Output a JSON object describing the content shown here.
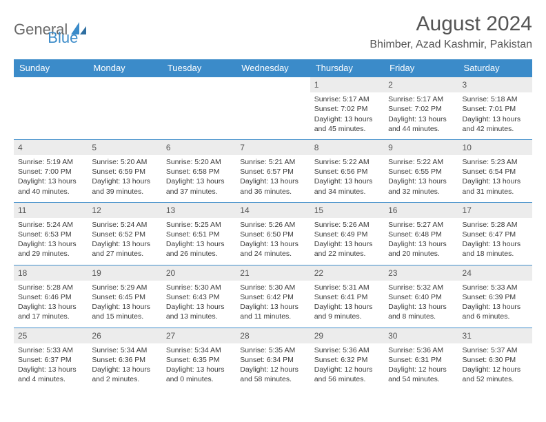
{
  "logo": {
    "part1": "General",
    "part2": "Blue"
  },
  "title": "August 2024",
  "location": "Bhimber, Azad Kashmir, Pakistan",
  "colors": {
    "header_bg": "#3b8bc9",
    "header_text": "#ffffff",
    "daynum_bg": "#ececec",
    "row_border": "#3b8bc9",
    "body_text": "#3a3a3a",
    "logo_gray": "#6a6a6a",
    "logo_blue": "#3b8bc9",
    "page_bg": "#ffffff"
  },
  "typography": {
    "title_fontsize": 30,
    "location_fontsize": 16,
    "dayheader_fontsize": 13,
    "daynum_fontsize": 12,
    "cell_fontsize": 10.5
  },
  "day_headers": [
    "Sunday",
    "Monday",
    "Tuesday",
    "Wednesday",
    "Thursday",
    "Friday",
    "Saturday"
  ],
  "weeks": [
    [
      {
        "n": "",
        "sr": "",
        "ss": "",
        "dl": ""
      },
      {
        "n": "",
        "sr": "",
        "ss": "",
        "dl": ""
      },
      {
        "n": "",
        "sr": "",
        "ss": "",
        "dl": ""
      },
      {
        "n": "",
        "sr": "",
        "ss": "",
        "dl": ""
      },
      {
        "n": "1",
        "sr": "Sunrise: 5:17 AM",
        "ss": "Sunset: 7:02 PM",
        "dl": "Daylight: 13 hours and 45 minutes."
      },
      {
        "n": "2",
        "sr": "Sunrise: 5:17 AM",
        "ss": "Sunset: 7:02 PM",
        "dl": "Daylight: 13 hours and 44 minutes."
      },
      {
        "n": "3",
        "sr": "Sunrise: 5:18 AM",
        "ss": "Sunset: 7:01 PM",
        "dl": "Daylight: 13 hours and 42 minutes."
      }
    ],
    [
      {
        "n": "4",
        "sr": "Sunrise: 5:19 AM",
        "ss": "Sunset: 7:00 PM",
        "dl": "Daylight: 13 hours and 40 minutes."
      },
      {
        "n": "5",
        "sr": "Sunrise: 5:20 AM",
        "ss": "Sunset: 6:59 PM",
        "dl": "Daylight: 13 hours and 39 minutes."
      },
      {
        "n": "6",
        "sr": "Sunrise: 5:20 AM",
        "ss": "Sunset: 6:58 PM",
        "dl": "Daylight: 13 hours and 37 minutes."
      },
      {
        "n": "7",
        "sr": "Sunrise: 5:21 AM",
        "ss": "Sunset: 6:57 PM",
        "dl": "Daylight: 13 hours and 36 minutes."
      },
      {
        "n": "8",
        "sr": "Sunrise: 5:22 AM",
        "ss": "Sunset: 6:56 PM",
        "dl": "Daylight: 13 hours and 34 minutes."
      },
      {
        "n": "9",
        "sr": "Sunrise: 5:22 AM",
        "ss": "Sunset: 6:55 PM",
        "dl": "Daylight: 13 hours and 32 minutes."
      },
      {
        "n": "10",
        "sr": "Sunrise: 5:23 AM",
        "ss": "Sunset: 6:54 PM",
        "dl": "Daylight: 13 hours and 31 minutes."
      }
    ],
    [
      {
        "n": "11",
        "sr": "Sunrise: 5:24 AM",
        "ss": "Sunset: 6:53 PM",
        "dl": "Daylight: 13 hours and 29 minutes."
      },
      {
        "n": "12",
        "sr": "Sunrise: 5:24 AM",
        "ss": "Sunset: 6:52 PM",
        "dl": "Daylight: 13 hours and 27 minutes."
      },
      {
        "n": "13",
        "sr": "Sunrise: 5:25 AM",
        "ss": "Sunset: 6:51 PM",
        "dl": "Daylight: 13 hours and 26 minutes."
      },
      {
        "n": "14",
        "sr": "Sunrise: 5:26 AM",
        "ss": "Sunset: 6:50 PM",
        "dl": "Daylight: 13 hours and 24 minutes."
      },
      {
        "n": "15",
        "sr": "Sunrise: 5:26 AM",
        "ss": "Sunset: 6:49 PM",
        "dl": "Daylight: 13 hours and 22 minutes."
      },
      {
        "n": "16",
        "sr": "Sunrise: 5:27 AM",
        "ss": "Sunset: 6:48 PM",
        "dl": "Daylight: 13 hours and 20 minutes."
      },
      {
        "n": "17",
        "sr": "Sunrise: 5:28 AM",
        "ss": "Sunset: 6:47 PM",
        "dl": "Daylight: 13 hours and 18 minutes."
      }
    ],
    [
      {
        "n": "18",
        "sr": "Sunrise: 5:28 AM",
        "ss": "Sunset: 6:46 PM",
        "dl": "Daylight: 13 hours and 17 minutes."
      },
      {
        "n": "19",
        "sr": "Sunrise: 5:29 AM",
        "ss": "Sunset: 6:45 PM",
        "dl": "Daylight: 13 hours and 15 minutes."
      },
      {
        "n": "20",
        "sr": "Sunrise: 5:30 AM",
        "ss": "Sunset: 6:43 PM",
        "dl": "Daylight: 13 hours and 13 minutes."
      },
      {
        "n": "21",
        "sr": "Sunrise: 5:30 AM",
        "ss": "Sunset: 6:42 PM",
        "dl": "Daylight: 13 hours and 11 minutes."
      },
      {
        "n": "22",
        "sr": "Sunrise: 5:31 AM",
        "ss": "Sunset: 6:41 PM",
        "dl": "Daylight: 13 hours and 9 minutes."
      },
      {
        "n": "23",
        "sr": "Sunrise: 5:32 AM",
        "ss": "Sunset: 6:40 PM",
        "dl": "Daylight: 13 hours and 8 minutes."
      },
      {
        "n": "24",
        "sr": "Sunrise: 5:33 AM",
        "ss": "Sunset: 6:39 PM",
        "dl": "Daylight: 13 hours and 6 minutes."
      }
    ],
    [
      {
        "n": "25",
        "sr": "Sunrise: 5:33 AM",
        "ss": "Sunset: 6:37 PM",
        "dl": "Daylight: 13 hours and 4 minutes."
      },
      {
        "n": "26",
        "sr": "Sunrise: 5:34 AM",
        "ss": "Sunset: 6:36 PM",
        "dl": "Daylight: 13 hours and 2 minutes."
      },
      {
        "n": "27",
        "sr": "Sunrise: 5:34 AM",
        "ss": "Sunset: 6:35 PM",
        "dl": "Daylight: 13 hours and 0 minutes."
      },
      {
        "n": "28",
        "sr": "Sunrise: 5:35 AM",
        "ss": "Sunset: 6:34 PM",
        "dl": "Daylight: 12 hours and 58 minutes."
      },
      {
        "n": "29",
        "sr": "Sunrise: 5:36 AM",
        "ss": "Sunset: 6:32 PM",
        "dl": "Daylight: 12 hours and 56 minutes."
      },
      {
        "n": "30",
        "sr": "Sunrise: 5:36 AM",
        "ss": "Sunset: 6:31 PM",
        "dl": "Daylight: 12 hours and 54 minutes."
      },
      {
        "n": "31",
        "sr": "Sunrise: 5:37 AM",
        "ss": "Sunset: 6:30 PM",
        "dl": "Daylight: 12 hours and 52 minutes."
      }
    ]
  ]
}
